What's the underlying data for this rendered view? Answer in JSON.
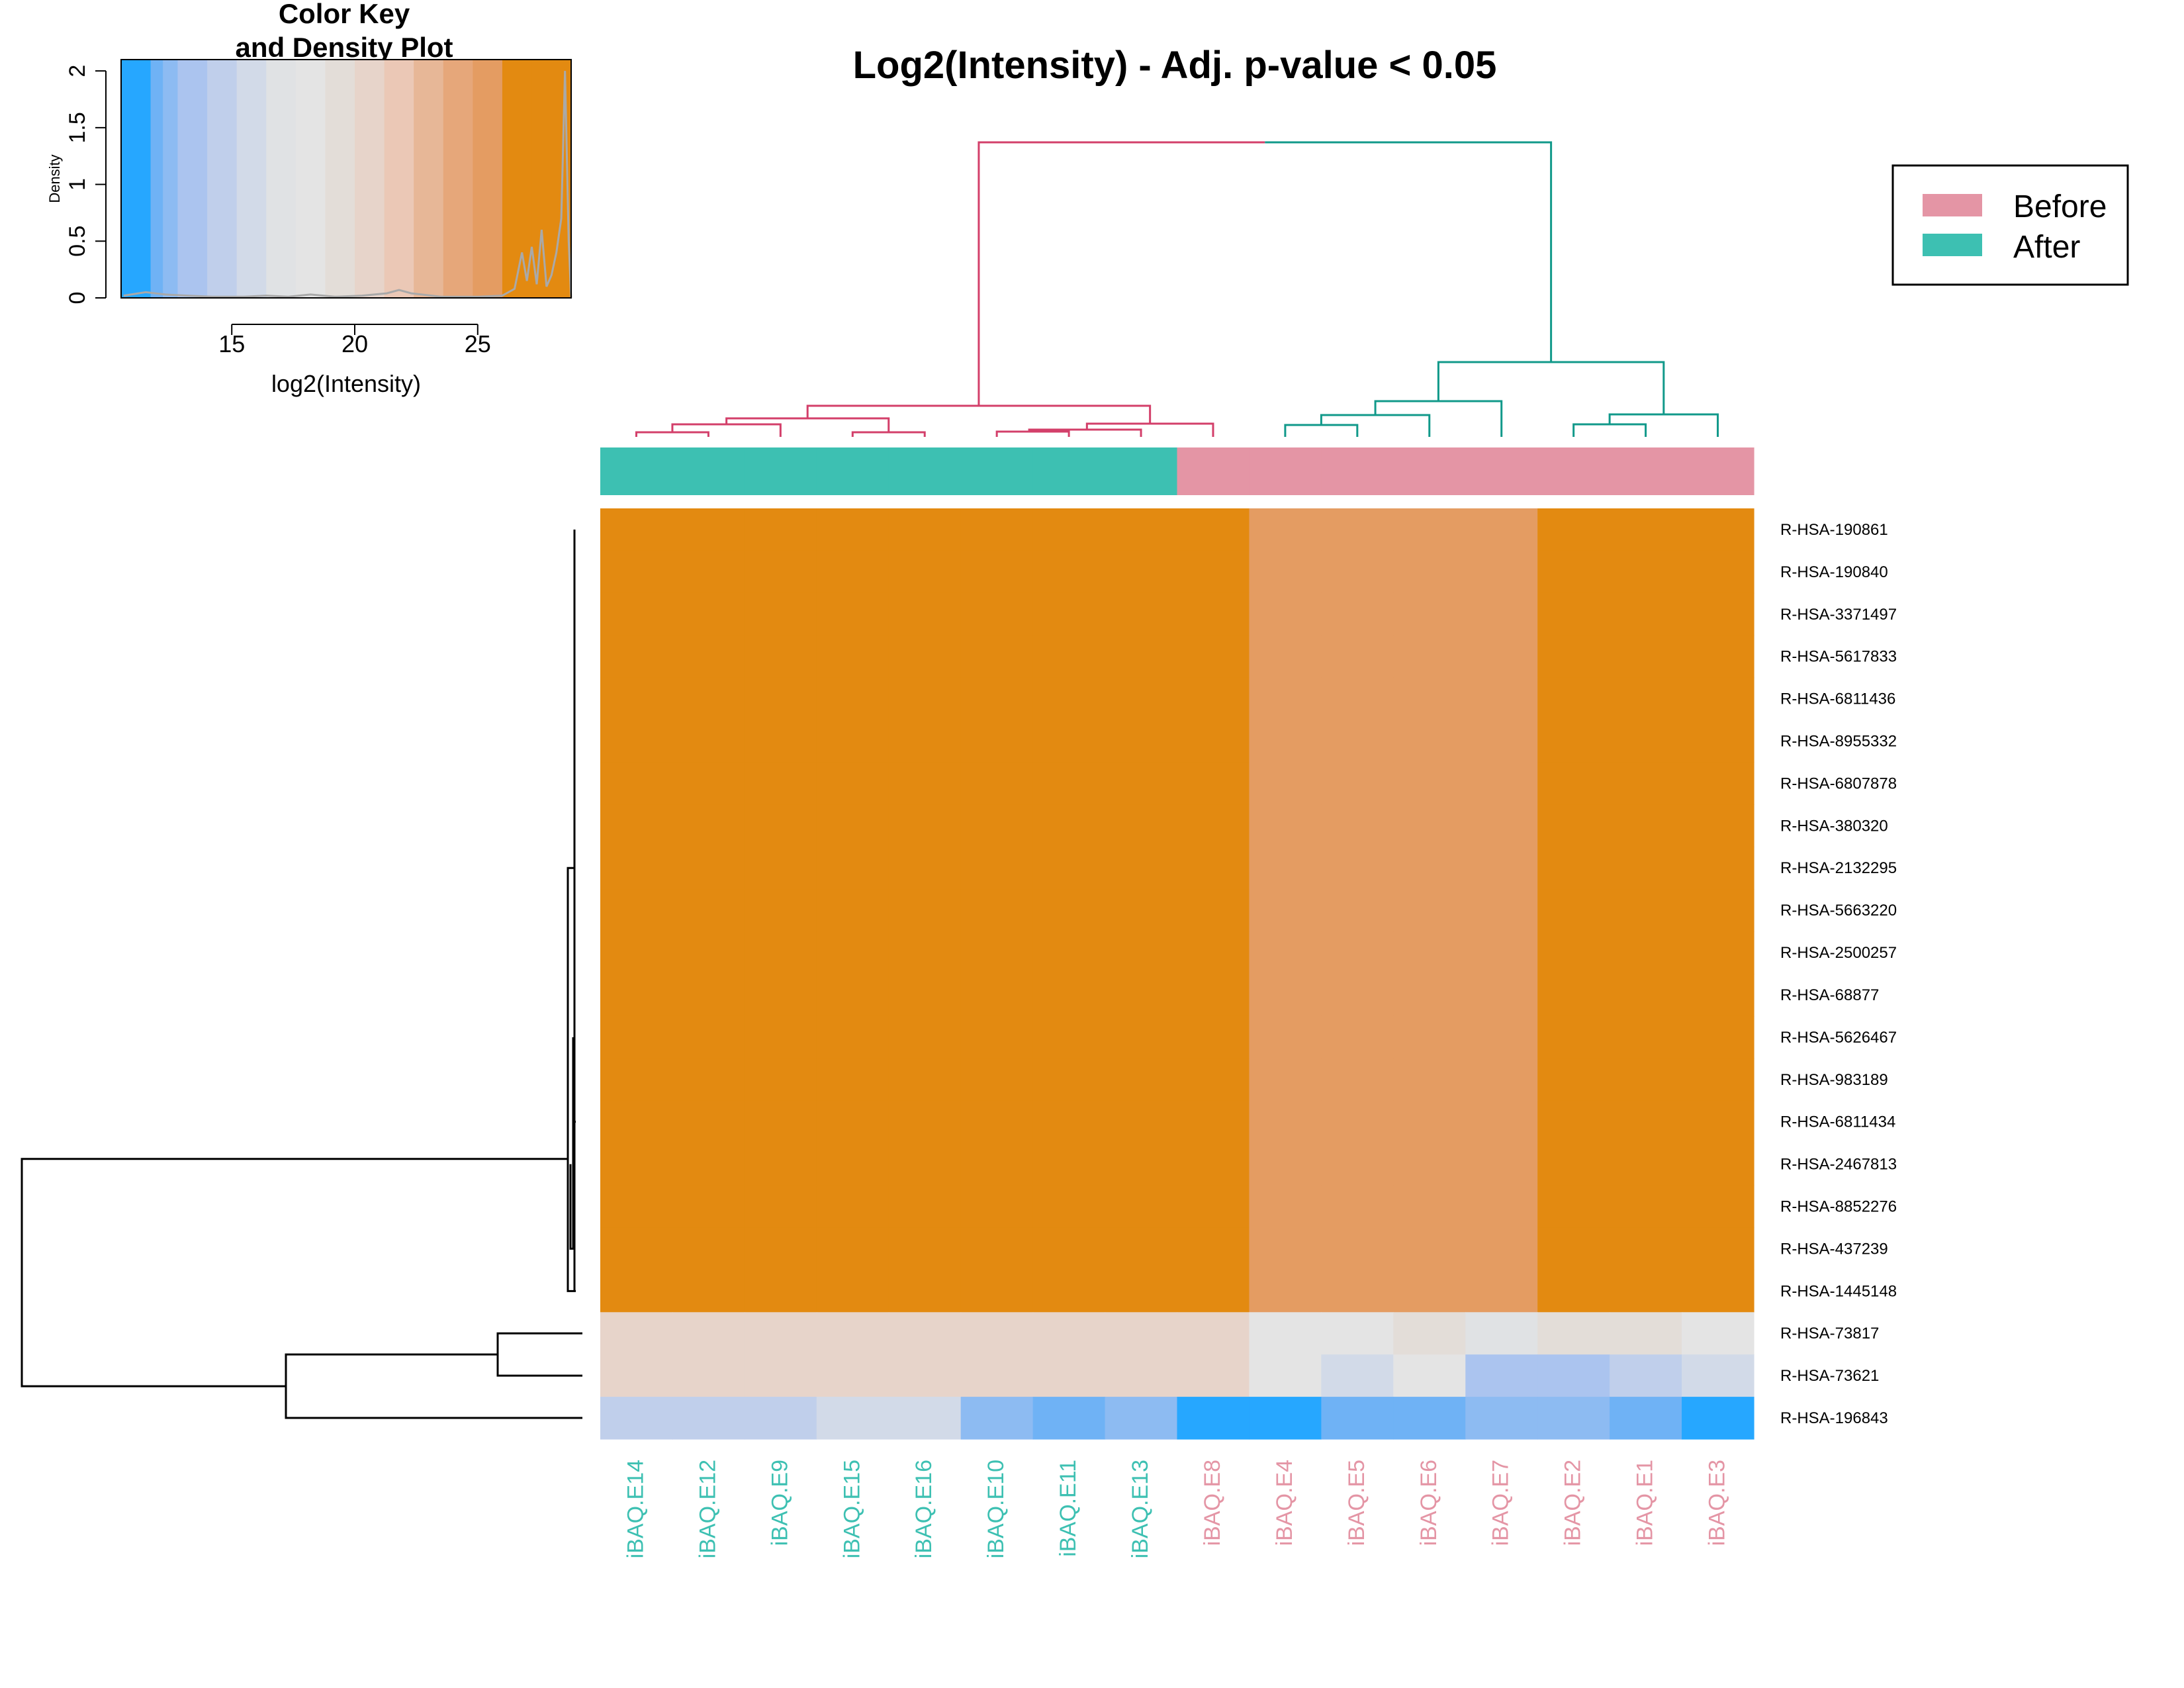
{
  "chart_data": {
    "type": "heatmap",
    "title": "Log2(Intensity) - Adj. p-value < 0.05",
    "columns": [
      "iBAQ.E14",
      "iBAQ.E12",
      "iBAQ.E9",
      "iBAQ.E15",
      "iBAQ.E16",
      "iBAQ.E10",
      "iBAQ.E11",
      "iBAQ.E13",
      "iBAQ.E8",
      "iBAQ.E4",
      "iBAQ.E5",
      "iBAQ.E6",
      "iBAQ.E7",
      "iBAQ.E2",
      "iBAQ.E1",
      "iBAQ.E3"
    ],
    "column_groups": [
      "After",
      "After",
      "After",
      "After",
      "After",
      "After",
      "After",
      "After",
      "Before",
      "Before",
      "Before",
      "Before",
      "Before",
      "Before",
      "Before",
      "Before"
    ],
    "rows": [
      "R-HSA-190861",
      "R-HSA-190840",
      "R-HSA-3371497",
      "R-HSA-5617833",
      "R-HSA-6811436",
      "R-HSA-8955332",
      "R-HSA-6807878",
      "R-HSA-380320",
      "R-HSA-2132295",
      "R-HSA-5663220",
      "R-HSA-2500257",
      "R-HSA-68877",
      "R-HSA-5626467",
      "R-HSA-983189",
      "R-HSA-6811434",
      "R-HSA-2467813",
      "R-HSA-8852276",
      "R-HSA-437239",
      "R-HSA-1445148",
      "R-HSA-73817",
      "R-HSA-73621",
      "R-HSA-196843"
    ],
    "values": [
      [
        28,
        28,
        28,
        28,
        28,
        28,
        28,
        28,
        28,
        27,
        27,
        27,
        27,
        28,
        28,
        28
      ],
      [
        28,
        28,
        28,
        28,
        28,
        28,
        28,
        28,
        28,
        27,
        27,
        27,
        27,
        28,
        28,
        28
      ],
      [
        28,
        28,
        28,
        28,
        28,
        28,
        28,
        28,
        28,
        27,
        27,
        27,
        27,
        28,
        28,
        28
      ],
      [
        28,
        28,
        28,
        28,
        28,
        28,
        28,
        28,
        28,
        27,
        27,
        27,
        27,
        28,
        28,
        28
      ],
      [
        28,
        28,
        28,
        28,
        28,
        28,
        28,
        28,
        28,
        27,
        27,
        27,
        27,
        28,
        28,
        28
      ],
      [
        28,
        28,
        28,
        28,
        28,
        28,
        28,
        28,
        28,
        27,
        27,
        27,
        27,
        28,
        28,
        28
      ],
      [
        28,
        28,
        28,
        28,
        28,
        28,
        28,
        28,
        28,
        27,
        27,
        27,
        27,
        28,
        28,
        28
      ],
      [
        28,
        28,
        28,
        28,
        28,
        28,
        28,
        28,
        28,
        27,
        27,
        27,
        27,
        28,
        28,
        28
      ],
      [
        28,
        28,
        28,
        28,
        28,
        28,
        28,
        28,
        28,
        27,
        27,
        27,
        27,
        28,
        28,
        28
      ],
      [
        28,
        28,
        28,
        28,
        28,
        28,
        28,
        28,
        28,
        27,
        27,
        27,
        27,
        28,
        28,
        28
      ],
      [
        28,
        28,
        28,
        28,
        28,
        28,
        28,
        28,
        28,
        27,
        27,
        27,
        27,
        28,
        28,
        28
      ],
      [
        28,
        28,
        28,
        28,
        28,
        28,
        28,
        28,
        28,
        27,
        27,
        27,
        27,
        28,
        28,
        28
      ],
      [
        28,
        28,
        28,
        28,
        28,
        28,
        28,
        28,
        28,
        27,
        27,
        27,
        27,
        28,
        28,
        28
      ],
      [
        28,
        28,
        28,
        28,
        28,
        28,
        28,
        28,
        28,
        27,
        27,
        27,
        27,
        28,
        28,
        28
      ],
      [
        28,
        28,
        28,
        28,
        28,
        28,
        28,
        28,
        28,
        27,
        27,
        27,
        27,
        28,
        28,
        28
      ],
      [
        28,
        28,
        28,
        28,
        28,
        28,
        28,
        28,
        28,
        27,
        27,
        27,
        27,
        28,
        28,
        28
      ],
      [
        28,
        28,
        28,
        28,
        28,
        28,
        28,
        28,
        28,
        27,
        27,
        27,
        27,
        28,
        28,
        28
      ],
      [
        28,
        28,
        28,
        28,
        28,
        28,
        28,
        28,
        28,
        27,
        27,
        27,
        27,
        28,
        28,
        28
      ],
      [
        28,
        28,
        28,
        28,
        28,
        28,
        28,
        28,
        28,
        27,
        27,
        27,
        27,
        28,
        28,
        28
      ],
      [
        22,
        22,
        22,
        22,
        22,
        22,
        22,
        22,
        22,
        20,
        20,
        21.5,
        19.5,
        21.5,
        21.5,
        20
      ],
      [
        22,
        22,
        22,
        22,
        22,
        22,
        22,
        22,
        22,
        20,
        19,
        20,
        15,
        15,
        17.5,
        19
      ],
      [
        16,
        16,
        16,
        18,
        18,
        14,
        13,
        14,
        11,
        11,
        13,
        13,
        14,
        14,
        13,
        11
      ]
    ],
    "legend": {
      "labels": [
        "Before",
        "After"
      ],
      "colors": [
        "#E495A5",
        "#3DC0B2"
      ],
      "placement": "top-right"
    },
    "color_key": {
      "title_lines": [
        "Color Key",
        "and Density Plot"
      ],
      "xlabel": "log2(Intensity)",
      "ylabel": "Density",
      "x_ticks": [
        "15",
        "20",
        "25"
      ],
      "y_ticks": [
        "0",
        "0.5",
        "1",
        "1.5",
        "2"
      ],
      "xlim": [
        10.5,
        28.8
      ],
      "ylim": [
        0,
        2.1
      ],
      "breaks": [
        10.5,
        11.7,
        12.2,
        12.8,
        14.0,
        15.2,
        16.4,
        17.6,
        18.8,
        20.0,
        21.2,
        22.4,
        23.6,
        24.8,
        26.0,
        27.2,
        28.8
      ],
      "colors": [
        "#26A7FF",
        "#6FB2F5",
        "#8DBBF2",
        "#ABC4EF",
        "#C0CFEB",
        "#D2DAE8",
        "#E0E2E4",
        "#E4E4E4",
        "#E3DDD8",
        "#E7D4CA",
        "#EBC8B6",
        "#E7B797",
        "#E6A77A",
        "#E49C62",
        "#E38A11",
        "#E38A11"
      ],
      "density": [
        [
          10.6,
          0.02
        ],
        [
          11.5,
          0.05
        ],
        [
          12.3,
          0.03
        ],
        [
          13.2,
          0.02
        ],
        [
          14.2,
          0.01
        ],
        [
          15.5,
          0.01
        ],
        [
          16.4,
          0.02
        ],
        [
          17.3,
          0.01
        ],
        [
          18.2,
          0.03
        ],
        [
          19.2,
          0.01
        ],
        [
          20.3,
          0.02
        ],
        [
          21.3,
          0.04
        ],
        [
          21.8,
          0.07
        ],
        [
          22.3,
          0.04
        ],
        [
          23.5,
          0.01
        ],
        [
          25.0,
          0.01
        ],
        [
          26.0,
          0.02
        ],
        [
          26.5,
          0.08
        ],
        [
          26.8,
          0.4
        ],
        [
          27.0,
          0.15
        ],
        [
          27.2,
          0.45
        ],
        [
          27.4,
          0.12
        ],
        [
          27.6,
          0.6
        ],
        [
          27.8,
          0.1
        ],
        [
          28.0,
          0.2
        ],
        [
          28.2,
          0.4
        ],
        [
          28.4,
          0.7
        ],
        [
          28.55,
          2.0
        ],
        [
          28.7,
          0.5
        ],
        [
          28.8,
          0.0
        ]
      ]
    },
    "value_colors": [
      {
        "value": 28,
        "color": "#E38A11"
      },
      {
        "value": 27,
        "color": "#E49C62"
      },
      {
        "value": 22,
        "color": "#E7D4CA"
      },
      {
        "value": 21.5,
        "color": "#E3DDD8"
      },
      {
        "value": 20,
        "color": "#E4E4E4"
      },
      {
        "value": 19.5,
        "color": "#E0E2E4"
      },
      {
        "value": 19,
        "color": "#D2DAE8"
      },
      {
        "value": 18,
        "color": "#D2DAE8"
      },
      {
        "value": 17.5,
        "color": "#C0CFEB"
      },
      {
        "value": 16,
        "color": "#C0CFEB"
      },
      {
        "value": 15,
        "color": "#ABC4EF"
      },
      {
        "value": 14,
        "color": "#8DBBF2"
      },
      {
        "value": 13,
        "color": "#6FB2F5"
      },
      {
        "value": 11,
        "color": "#26A7FF"
      }
    ],
    "group_colors": {
      "After": "#3DC0B2",
      "Before": "#E495A5"
    },
    "dendrogram_colors": {
      "left_cluster": "#D33F6A",
      "right_cluster": "#11998A",
      "row": "#000000"
    }
  }
}
